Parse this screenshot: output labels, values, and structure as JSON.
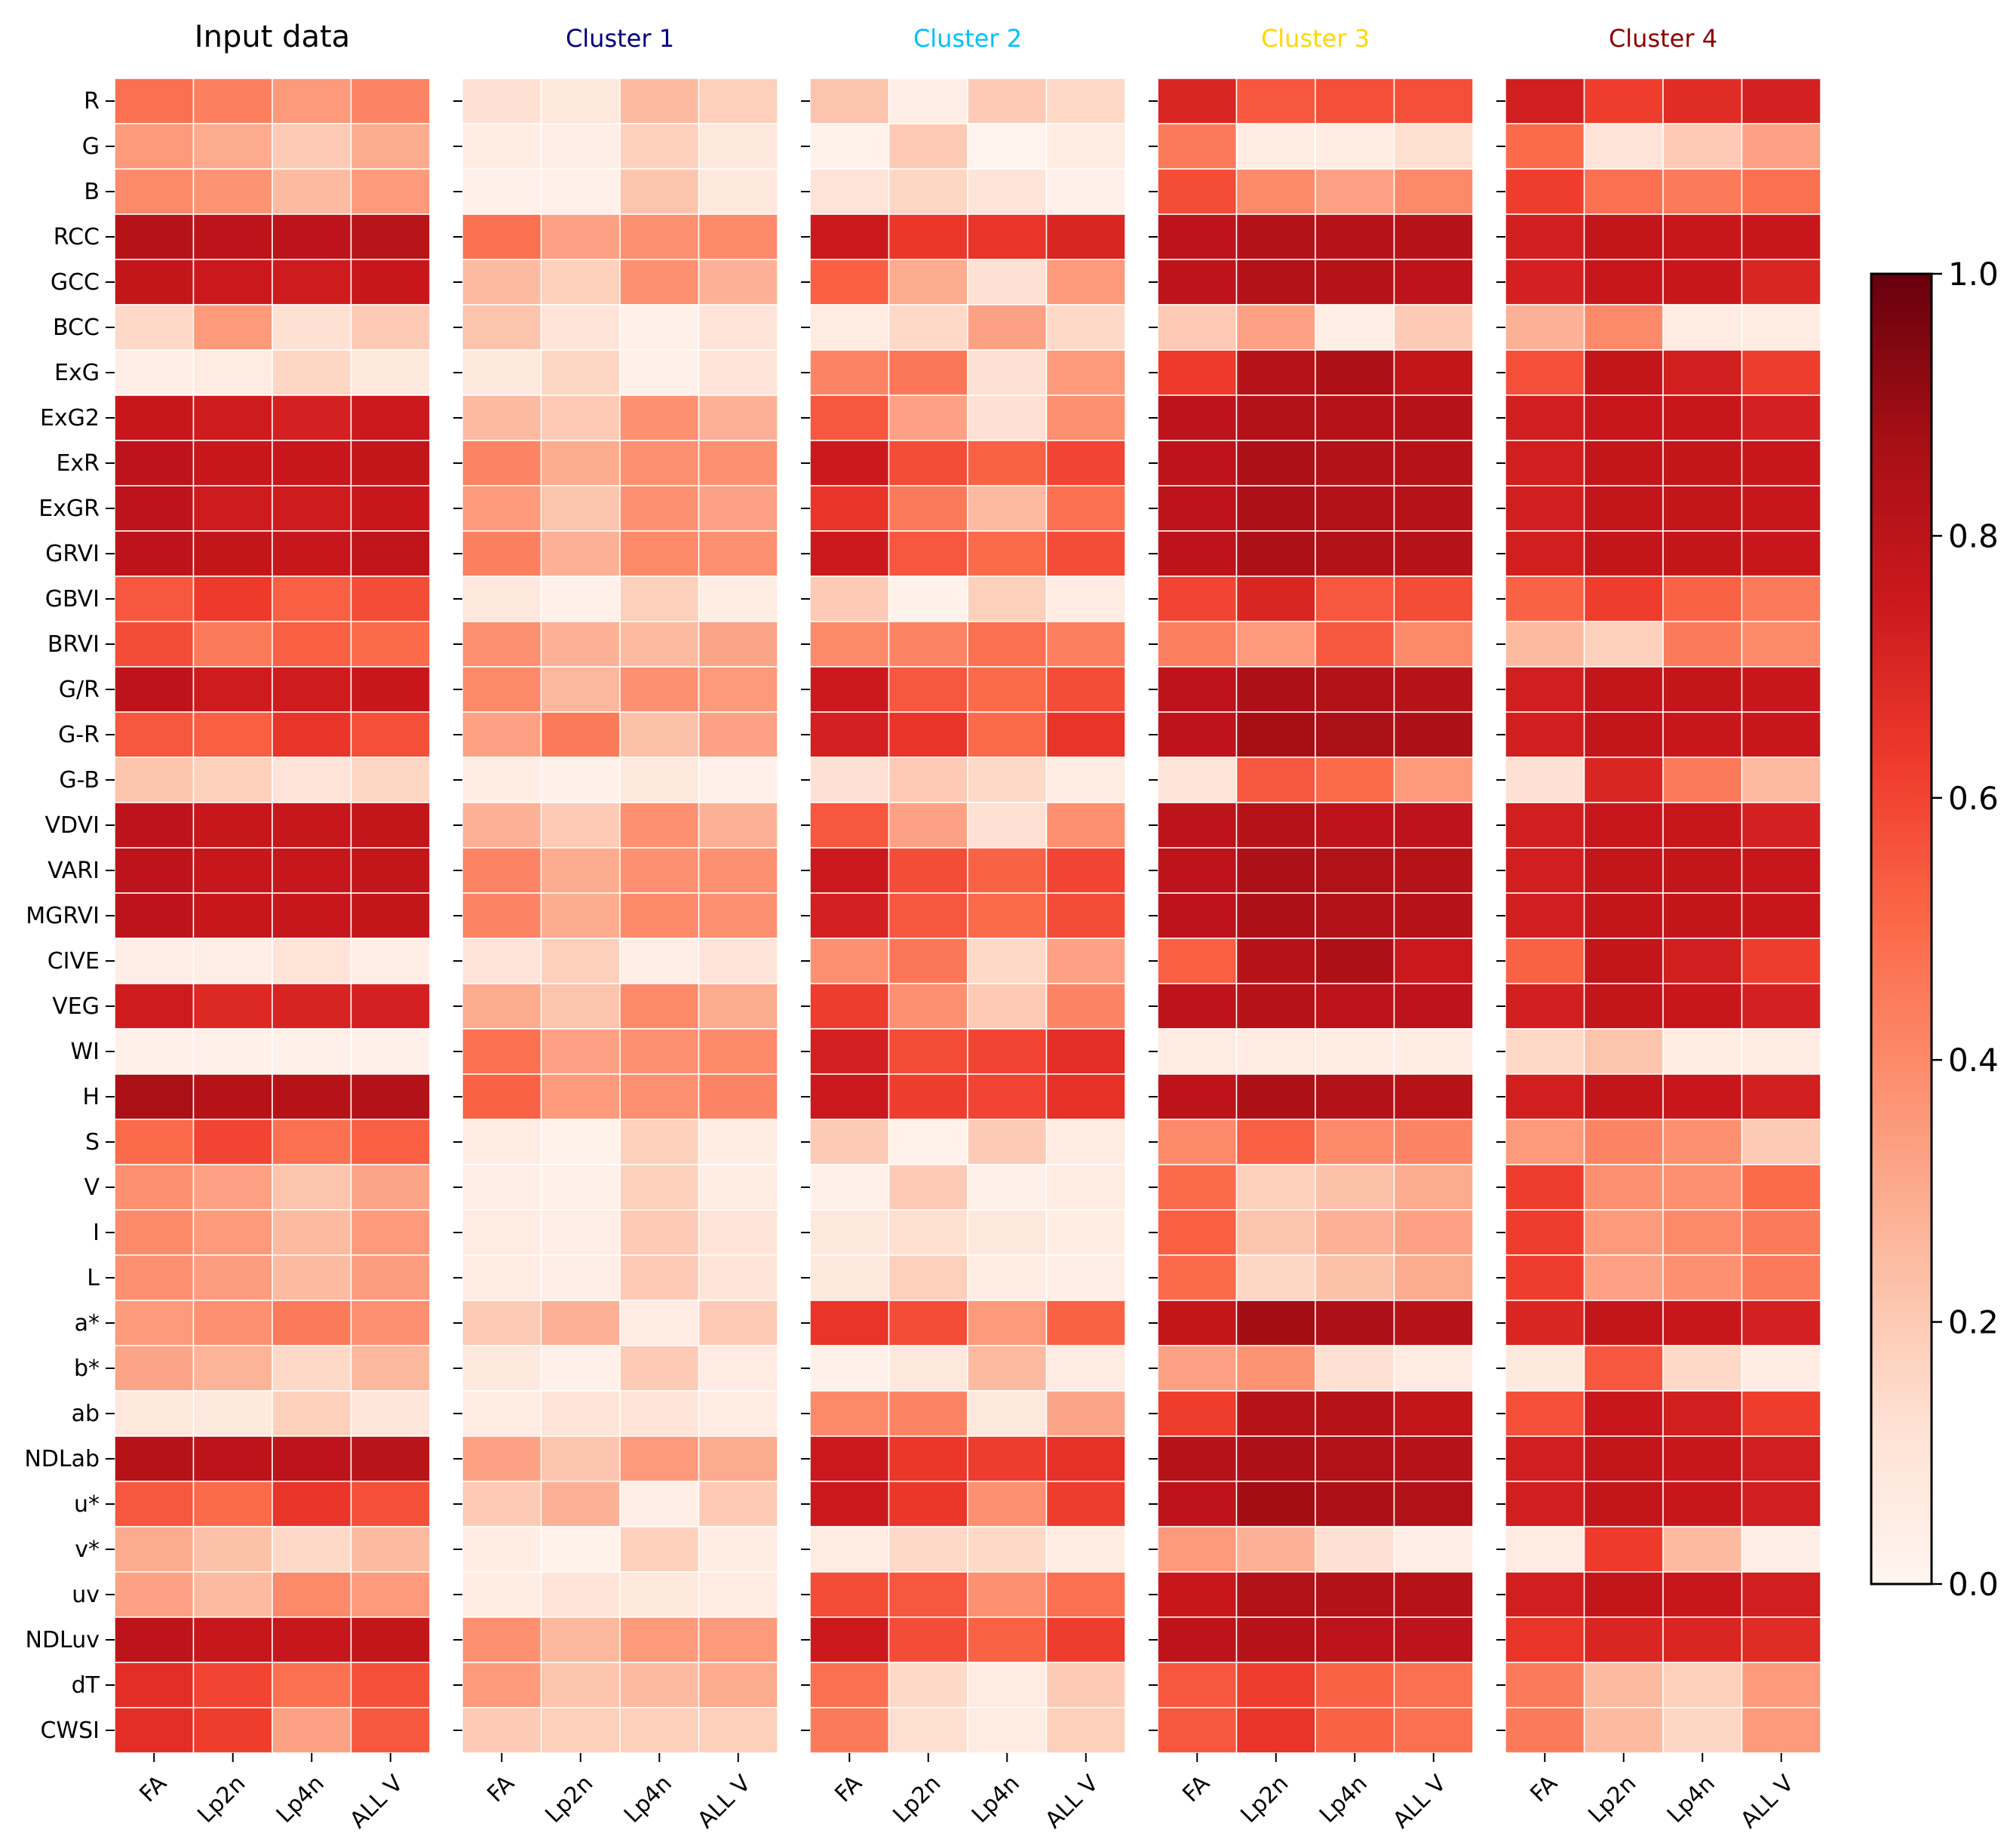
{
  "chart_data": {
    "type": "heatmap",
    "colormap": "Reds",
    "color_range": [
      0.0,
      1.0
    ],
    "colorbar": {
      "ticks": [
        0.0,
        0.2,
        0.4,
        0.6,
        0.8,
        1.0
      ],
      "tick_labels": [
        "0.0",
        "0.2",
        "0.4",
        "0.6",
        "0.8",
        "1.0"
      ],
      "placement": "right"
    },
    "rows": [
      "R",
      "G",
      "B",
      "RCC",
      "GCC",
      "BCC",
      "ExG",
      "ExG2",
      "ExR",
      "ExGR",
      "GRVI",
      "GBVI",
      "BRVI",
      "G/R",
      "G-R",
      "G-B",
      "VDVI",
      "VARI",
      "MGRVI",
      "CIVE",
      "VEG",
      "WI",
      "H",
      "S",
      "V",
      "I",
      "L",
      "a*",
      "b*",
      "ab",
      "NDLab",
      "u*",
      "v*",
      "uv",
      "NDLuv",
      "dT",
      "CWSI"
    ],
    "columns": [
      "FA",
      "Lp2n",
      "Lp4n",
      "ALL V"
    ],
    "panels": [
      {
        "title": "Input data",
        "title_color": "#000000",
        "values": [
          [
            0.48,
            0.43,
            0.35,
            0.42
          ],
          [
            0.35,
            0.3,
            0.2,
            0.3
          ],
          [
            0.4,
            0.37,
            0.25,
            0.35
          ],
          [
            0.82,
            0.8,
            0.8,
            0.81
          ],
          [
            0.78,
            0.75,
            0.74,
            0.76
          ],
          [
            0.15,
            0.35,
            0.12,
            0.2
          ],
          [
            0.04,
            0.06,
            0.16,
            0.08
          ],
          [
            0.76,
            0.74,
            0.72,
            0.75
          ],
          [
            0.8,
            0.77,
            0.76,
            0.78
          ],
          [
            0.8,
            0.74,
            0.74,
            0.76
          ],
          [
            0.8,
            0.78,
            0.77,
            0.79
          ],
          [
            0.55,
            0.63,
            0.53,
            0.58
          ],
          [
            0.58,
            0.45,
            0.53,
            0.5
          ],
          [
            0.8,
            0.74,
            0.74,
            0.76
          ],
          [
            0.55,
            0.53,
            0.65,
            0.57
          ],
          [
            0.22,
            0.18,
            0.1,
            0.16
          ],
          [
            0.8,
            0.77,
            0.77,
            0.78
          ],
          [
            0.8,
            0.77,
            0.77,
            0.78
          ],
          [
            0.8,
            0.77,
            0.77,
            0.78
          ],
          [
            0.04,
            0.04,
            0.11,
            0.04
          ],
          [
            0.74,
            0.69,
            0.71,
            0.72
          ],
          [
            0.03,
            0.03,
            0.03,
            0.03
          ],
          [
            0.86,
            0.82,
            0.82,
            0.83
          ],
          [
            0.5,
            0.6,
            0.48,
            0.53
          ],
          [
            0.38,
            0.33,
            0.22,
            0.32
          ],
          [
            0.4,
            0.35,
            0.25,
            0.35
          ],
          [
            0.38,
            0.34,
            0.25,
            0.34
          ],
          [
            0.35,
            0.38,
            0.45,
            0.38
          ],
          [
            0.32,
            0.27,
            0.15,
            0.26
          ],
          [
            0.08,
            0.07,
            0.18,
            0.09
          ],
          [
            0.82,
            0.8,
            0.8,
            0.81
          ],
          [
            0.55,
            0.5,
            0.65,
            0.57
          ],
          [
            0.3,
            0.23,
            0.15,
            0.25
          ],
          [
            0.33,
            0.25,
            0.4,
            0.35
          ],
          [
            0.8,
            0.77,
            0.77,
            0.78
          ],
          [
            0.67,
            0.6,
            0.48,
            0.57
          ],
          [
            0.67,
            0.62,
            0.33,
            0.55
          ]
        ]
      },
      {
        "title": "Cluster 1",
        "title_color": "#000080",
        "values": [
          [
            0.12,
            0.08,
            0.25,
            0.18
          ],
          [
            0.05,
            0.04,
            0.18,
            0.08
          ],
          [
            0.03,
            0.03,
            0.22,
            0.08
          ],
          [
            0.48,
            0.33,
            0.38,
            0.4
          ],
          [
            0.25,
            0.18,
            0.38,
            0.28
          ],
          [
            0.22,
            0.1,
            0.03,
            0.1
          ],
          [
            0.08,
            0.16,
            0.03,
            0.1
          ],
          [
            0.25,
            0.2,
            0.38,
            0.28
          ],
          [
            0.42,
            0.3,
            0.38,
            0.38
          ],
          [
            0.35,
            0.22,
            0.38,
            0.33
          ],
          [
            0.43,
            0.28,
            0.4,
            0.38
          ],
          [
            0.08,
            0.03,
            0.18,
            0.05
          ],
          [
            0.38,
            0.28,
            0.25,
            0.32
          ],
          [
            0.4,
            0.26,
            0.38,
            0.35
          ],
          [
            0.33,
            0.45,
            0.23,
            0.33
          ],
          [
            0.05,
            0.03,
            0.08,
            0.03
          ],
          [
            0.28,
            0.2,
            0.38,
            0.28
          ],
          [
            0.42,
            0.3,
            0.38,
            0.38
          ],
          [
            0.42,
            0.3,
            0.4,
            0.38
          ],
          [
            0.1,
            0.18,
            0.04,
            0.1
          ],
          [
            0.3,
            0.22,
            0.4,
            0.3
          ],
          [
            0.48,
            0.33,
            0.38,
            0.4
          ],
          [
            0.52,
            0.35,
            0.38,
            0.42
          ],
          [
            0.06,
            0.02,
            0.18,
            0.05
          ],
          [
            0.04,
            0.03,
            0.18,
            0.05
          ],
          [
            0.06,
            0.04,
            0.2,
            0.1
          ],
          [
            0.06,
            0.04,
            0.2,
            0.1
          ],
          [
            0.2,
            0.28,
            0.06,
            0.2
          ],
          [
            0.07,
            0.03,
            0.2,
            0.06
          ],
          [
            0.06,
            0.1,
            0.1,
            0.06
          ],
          [
            0.33,
            0.22,
            0.35,
            0.3
          ],
          [
            0.2,
            0.28,
            0.04,
            0.2
          ],
          [
            0.05,
            0.02,
            0.18,
            0.05
          ],
          [
            0.05,
            0.1,
            0.08,
            0.06
          ],
          [
            0.38,
            0.26,
            0.35,
            0.35
          ],
          [
            0.35,
            0.22,
            0.25,
            0.3
          ],
          [
            0.2,
            0.18,
            0.18,
            0.18
          ]
        ]
      },
      {
        "title": "Cluster 2",
        "title_color": "#00bfff",
        "values": [
          [
            0.22,
            0.04,
            0.2,
            0.15
          ],
          [
            0.02,
            0.2,
            0.01,
            0.06
          ],
          [
            0.1,
            0.16,
            0.1,
            0.03
          ],
          [
            0.75,
            0.64,
            0.65,
            0.7
          ],
          [
            0.53,
            0.3,
            0.12,
            0.35
          ],
          [
            0.06,
            0.15,
            0.33,
            0.15
          ],
          [
            0.42,
            0.46,
            0.12,
            0.35
          ],
          [
            0.55,
            0.33,
            0.12,
            0.38
          ],
          [
            0.75,
            0.58,
            0.52,
            0.6
          ],
          [
            0.65,
            0.45,
            0.25,
            0.48
          ],
          [
            0.75,
            0.55,
            0.5,
            0.58
          ],
          [
            0.2,
            0.02,
            0.18,
            0.06
          ],
          [
            0.4,
            0.42,
            0.48,
            0.43
          ],
          [
            0.75,
            0.55,
            0.5,
            0.58
          ],
          [
            0.72,
            0.65,
            0.5,
            0.65
          ],
          [
            0.12,
            0.2,
            0.15,
            0.06
          ],
          [
            0.55,
            0.33,
            0.12,
            0.38
          ],
          [
            0.75,
            0.58,
            0.52,
            0.6
          ],
          [
            0.72,
            0.55,
            0.5,
            0.58
          ],
          [
            0.38,
            0.46,
            0.15,
            0.33
          ],
          [
            0.62,
            0.38,
            0.2,
            0.42
          ],
          [
            0.72,
            0.58,
            0.6,
            0.67
          ],
          [
            0.75,
            0.62,
            0.6,
            0.66
          ],
          [
            0.2,
            0.02,
            0.2,
            0.06
          ],
          [
            0.03,
            0.2,
            0.03,
            0.06
          ],
          [
            0.08,
            0.13,
            0.08,
            0.05
          ],
          [
            0.08,
            0.18,
            0.05,
            0.04
          ],
          [
            0.65,
            0.58,
            0.35,
            0.52
          ],
          [
            0.03,
            0.08,
            0.25,
            0.06
          ],
          [
            0.4,
            0.42,
            0.08,
            0.32
          ],
          [
            0.75,
            0.64,
            0.62,
            0.66
          ],
          [
            0.75,
            0.64,
            0.38,
            0.62
          ],
          [
            0.06,
            0.15,
            0.15,
            0.05
          ],
          [
            0.58,
            0.55,
            0.38,
            0.48
          ],
          [
            0.75,
            0.58,
            0.52,
            0.62
          ],
          [
            0.48,
            0.15,
            0.06,
            0.2
          ],
          [
            0.45,
            0.13,
            0.06,
            0.18
          ]
        ]
      },
      {
        "title": "Cluster 3",
        "title_color": "#ffd700",
        "values": [
          [
            0.7,
            0.55,
            0.57,
            0.57
          ],
          [
            0.45,
            0.05,
            0.06,
            0.13
          ],
          [
            0.58,
            0.4,
            0.33,
            0.4
          ],
          [
            0.8,
            0.83,
            0.82,
            0.82
          ],
          [
            0.8,
            0.83,
            0.82,
            0.8
          ],
          [
            0.2,
            0.33,
            0.04,
            0.2
          ],
          [
            0.63,
            0.82,
            0.85,
            0.78
          ],
          [
            0.8,
            0.83,
            0.82,
            0.82
          ],
          [
            0.8,
            0.85,
            0.83,
            0.82
          ],
          [
            0.8,
            0.85,
            0.83,
            0.82
          ],
          [
            0.8,
            0.85,
            0.84,
            0.82
          ],
          [
            0.6,
            0.7,
            0.55,
            0.58
          ],
          [
            0.43,
            0.35,
            0.55,
            0.4
          ],
          [
            0.8,
            0.85,
            0.84,
            0.82
          ],
          [
            0.8,
            0.87,
            0.86,
            0.85
          ],
          [
            0.1,
            0.55,
            0.5,
            0.35
          ],
          [
            0.8,
            0.82,
            0.8,
            0.8
          ],
          [
            0.8,
            0.85,
            0.84,
            0.82
          ],
          [
            0.8,
            0.85,
            0.84,
            0.82
          ],
          [
            0.53,
            0.82,
            0.85,
            0.75
          ],
          [
            0.8,
            0.82,
            0.8,
            0.8
          ],
          [
            0.06,
            0.06,
            0.05,
            0.05
          ],
          [
            0.8,
            0.85,
            0.83,
            0.82
          ],
          [
            0.4,
            0.53,
            0.4,
            0.42
          ],
          [
            0.5,
            0.18,
            0.23,
            0.3
          ],
          [
            0.53,
            0.22,
            0.28,
            0.33
          ],
          [
            0.5,
            0.16,
            0.23,
            0.3
          ],
          [
            0.78,
            0.88,
            0.85,
            0.82
          ],
          [
            0.33,
            0.37,
            0.12,
            0.06
          ],
          [
            0.62,
            0.82,
            0.82,
            0.78
          ],
          [
            0.82,
            0.85,
            0.84,
            0.82
          ],
          [
            0.8,
            0.88,
            0.85,
            0.84
          ],
          [
            0.35,
            0.28,
            0.12,
            0.04
          ],
          [
            0.76,
            0.84,
            0.83,
            0.82
          ],
          [
            0.8,
            0.82,
            0.8,
            0.8
          ],
          [
            0.55,
            0.62,
            0.52,
            0.48
          ],
          [
            0.55,
            0.65,
            0.52,
            0.48
          ]
        ]
      },
      {
        "title": "Cluster 4",
        "title_color": "#8b0000",
        "values": [
          [
            0.73,
            0.62,
            0.68,
            0.72
          ],
          [
            0.5,
            0.1,
            0.2,
            0.33
          ],
          [
            0.62,
            0.48,
            0.45,
            0.48
          ],
          [
            0.73,
            0.78,
            0.76,
            0.76
          ],
          [
            0.72,
            0.76,
            0.76,
            0.7
          ],
          [
            0.28,
            0.4,
            0.06,
            0.06
          ],
          [
            0.57,
            0.78,
            0.73,
            0.62
          ],
          [
            0.73,
            0.76,
            0.76,
            0.72
          ],
          [
            0.73,
            0.78,
            0.78,
            0.76
          ],
          [
            0.73,
            0.78,
            0.78,
            0.76
          ],
          [
            0.73,
            0.78,
            0.78,
            0.76
          ],
          [
            0.52,
            0.62,
            0.52,
            0.45
          ],
          [
            0.25,
            0.18,
            0.45,
            0.4
          ],
          [
            0.73,
            0.78,
            0.78,
            0.76
          ],
          [
            0.73,
            0.78,
            0.76,
            0.76
          ],
          [
            0.12,
            0.7,
            0.45,
            0.25
          ],
          [
            0.73,
            0.76,
            0.76,
            0.72
          ],
          [
            0.73,
            0.78,
            0.78,
            0.76
          ],
          [
            0.73,
            0.78,
            0.78,
            0.76
          ],
          [
            0.52,
            0.78,
            0.73,
            0.62
          ],
          [
            0.73,
            0.78,
            0.76,
            0.72
          ],
          [
            0.15,
            0.22,
            0.05,
            0.06
          ],
          [
            0.73,
            0.78,
            0.76,
            0.73
          ],
          [
            0.35,
            0.42,
            0.38,
            0.2
          ],
          [
            0.62,
            0.38,
            0.38,
            0.5
          ],
          [
            0.62,
            0.35,
            0.4,
            0.45
          ],
          [
            0.62,
            0.33,
            0.38,
            0.45
          ],
          [
            0.7,
            0.78,
            0.76,
            0.72
          ],
          [
            0.07,
            0.55,
            0.15,
            0.05
          ],
          [
            0.57,
            0.76,
            0.73,
            0.62
          ],
          [
            0.73,
            0.78,
            0.76,
            0.73
          ],
          [
            0.73,
            0.78,
            0.76,
            0.73
          ],
          [
            0.06,
            0.63,
            0.25,
            0.04
          ],
          [
            0.73,
            0.78,
            0.76,
            0.73
          ],
          [
            0.65,
            0.7,
            0.7,
            0.68
          ],
          [
            0.45,
            0.25,
            0.18,
            0.35
          ],
          [
            0.45,
            0.25,
            0.16,
            0.35
          ]
        ]
      }
    ]
  }
}
